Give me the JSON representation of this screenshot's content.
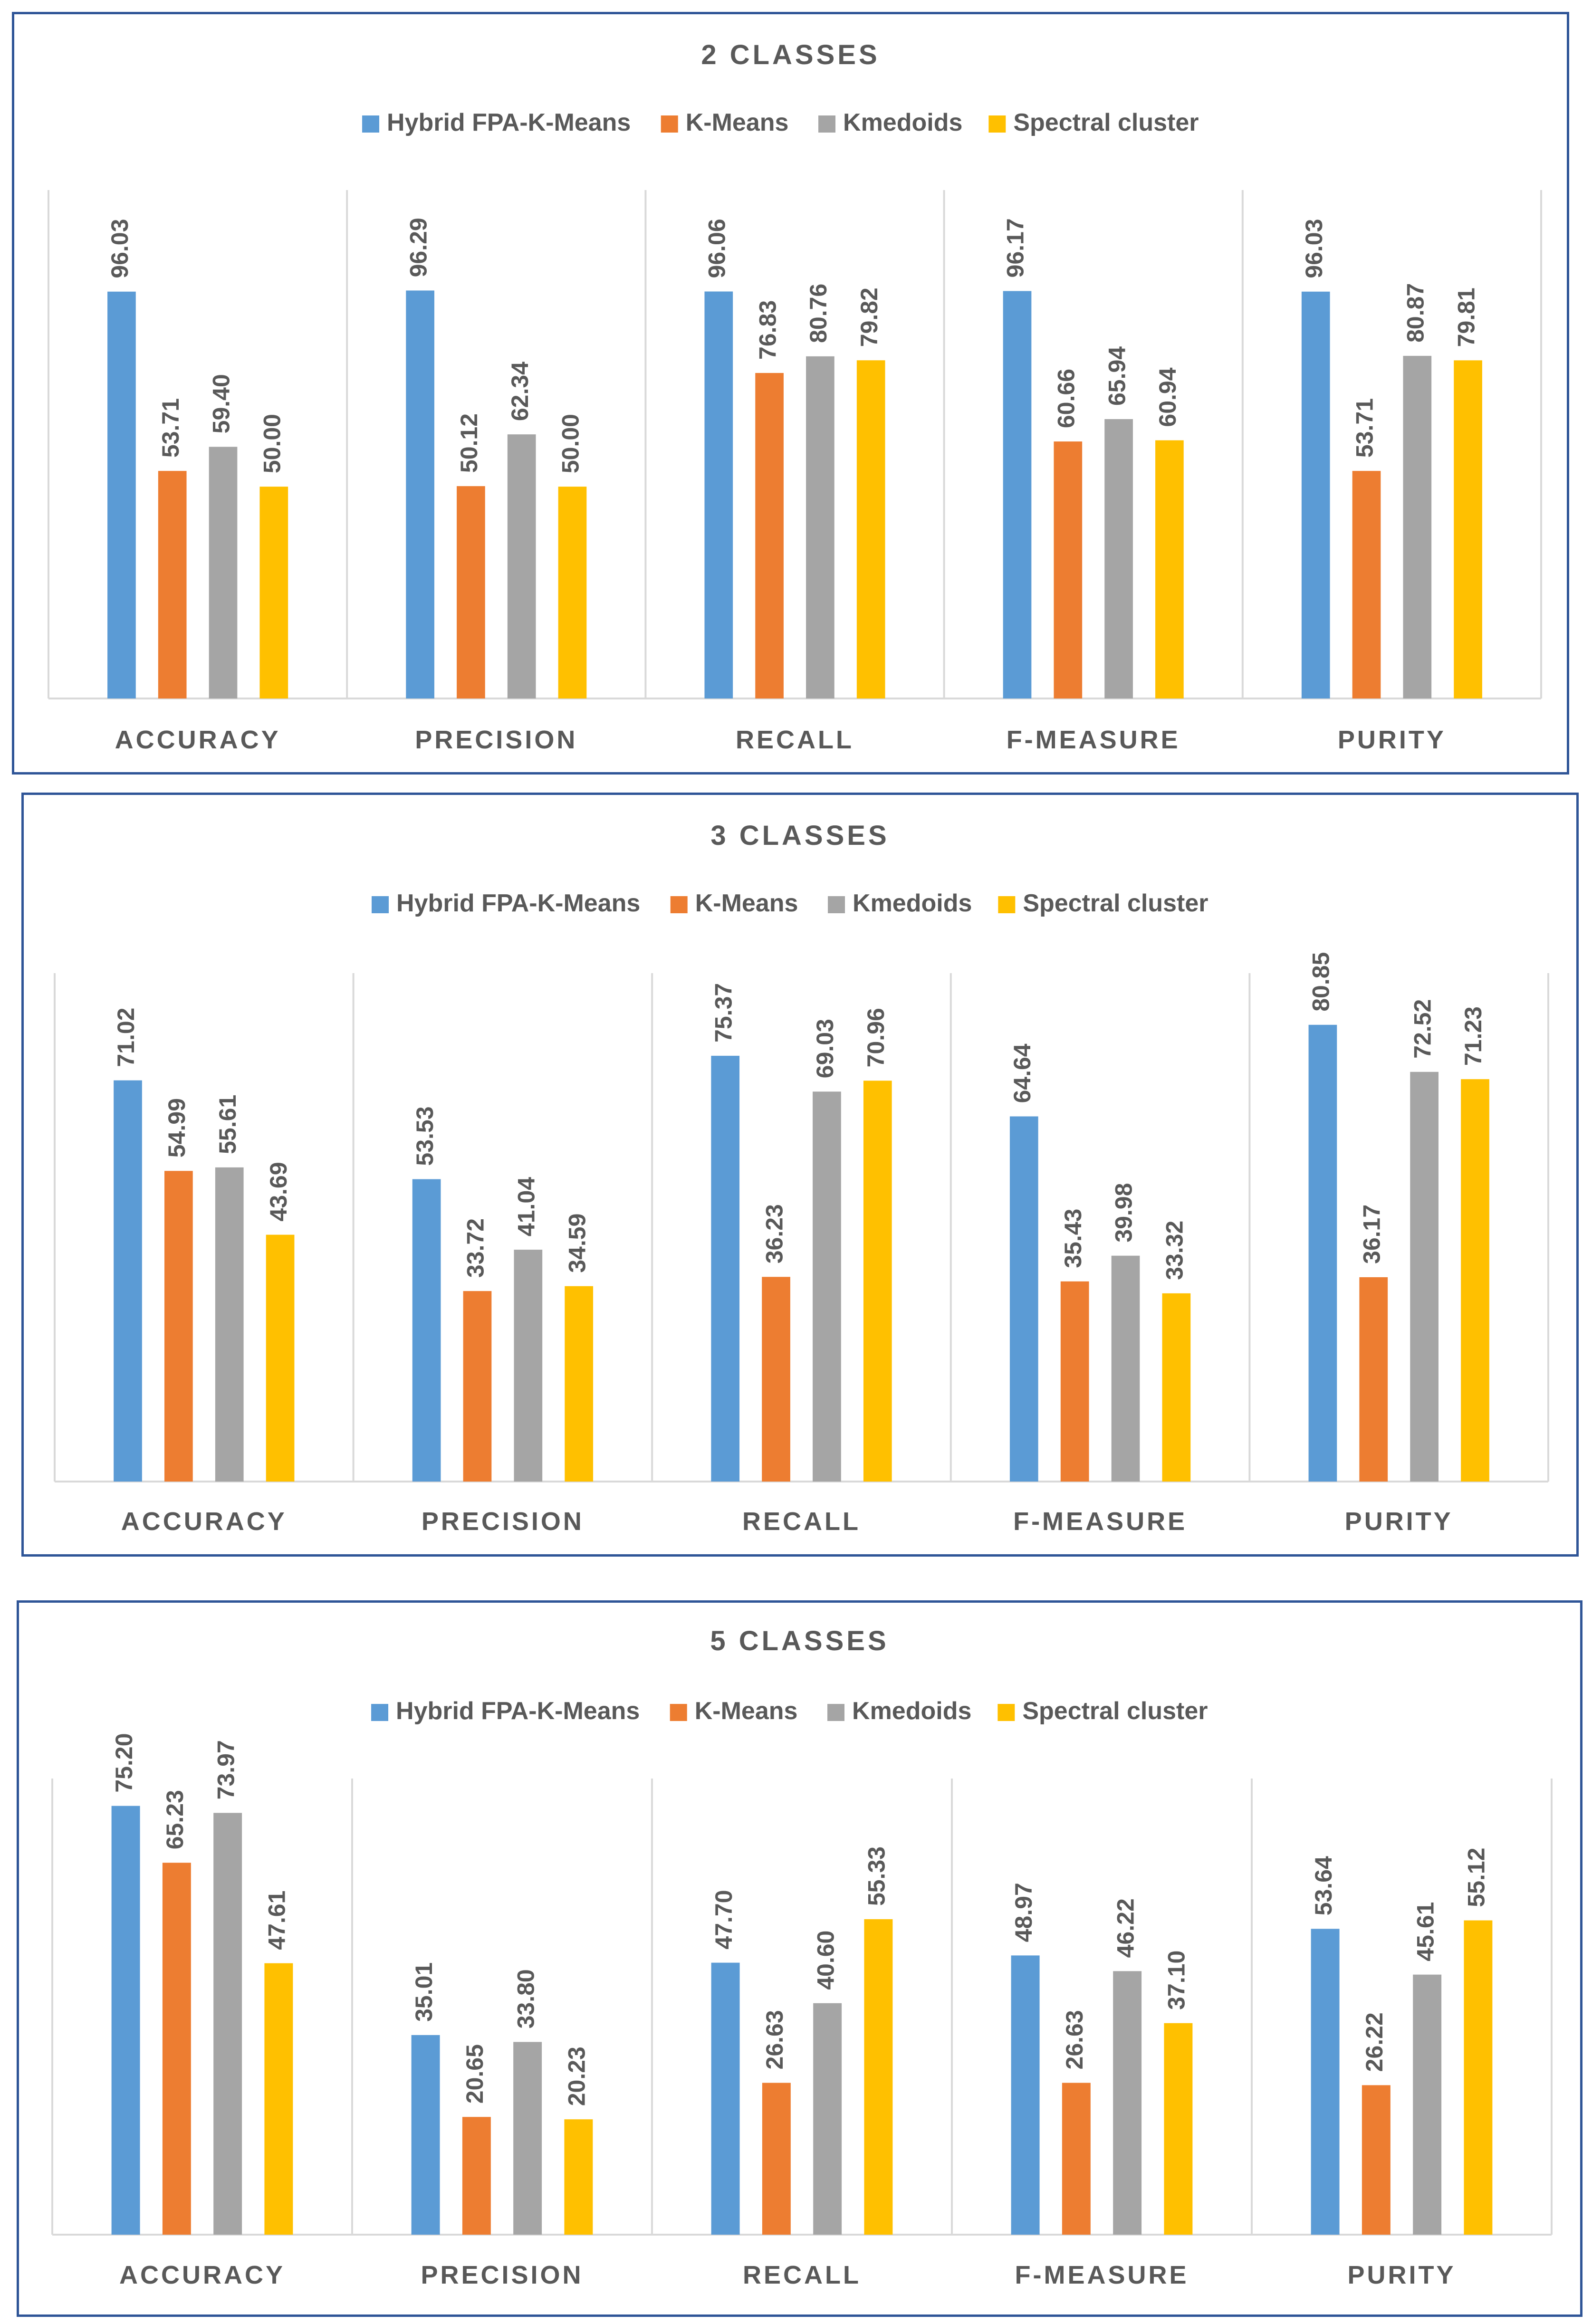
{
  "colors": {
    "series": [
      "#5b9bd5",
      "#ed7d31",
      "#a5a5a5",
      "#ffc000"
    ],
    "text": "#595959",
    "axis": "#d9d9d9",
    "border": "#2f5597"
  },
  "chart_data": [
    {
      "type": "bar",
      "title": "2 CLASSES",
      "categories": [
        "ACCURACY",
        "PRECISION",
        "RECALL",
        "F-MEASURE",
        "PURITY"
      ],
      "series": [
        {
          "name": "Hybrid FPA-K-Means",
          "values": [
            96.03,
            96.29,
            96.06,
            96.17,
            96.03
          ]
        },
        {
          "name": "K-Means",
          "values": [
            53.71,
            50.12,
            76.83,
            60.66,
            53.71
          ]
        },
        {
          "name": "Kmedoids",
          "values": [
            59.4,
            62.34,
            80.76,
            65.94,
            80.87
          ]
        },
        {
          "name": "Spectral cluster",
          "values": [
            50.0,
            50.0,
            79.82,
            60.94,
            79.81
          ]
        }
      ],
      "xlabel": "",
      "ylabel": "",
      "ylim": [
        0,
        120
      ],
      "legend": "top"
    },
    {
      "type": "bar",
      "title": "3 CLASSES",
      "categories": [
        "ACCURACY",
        "PRECISION",
        "RECALL",
        "F-MEASURE",
        "PURITY"
      ],
      "series": [
        {
          "name": "Hybrid FPA-K-Means",
          "values": [
            71.02,
            53.53,
            75.37,
            64.64,
            80.85
          ]
        },
        {
          "name": "K-Means",
          "values": [
            54.99,
            33.72,
            36.23,
            35.43,
            36.17
          ]
        },
        {
          "name": "Kmedoids",
          "values": [
            55.61,
            41.04,
            69.03,
            39.98,
            72.52
          ]
        },
        {
          "name": "Spectral cluster",
          "values": [
            43.69,
            34.59,
            70.96,
            33.32,
            71.23
          ]
        }
      ],
      "xlabel": "",
      "ylabel": "",
      "ylim": [
        0,
        90
      ],
      "legend": "top"
    },
    {
      "type": "bar",
      "title": "5 CLASSES",
      "categories": [
        "ACCURACY",
        "PRECISION",
        "RECALL",
        "F-MEASURE",
        "PURITY"
      ],
      "series": [
        {
          "name": "Hybrid FPA-K-Means",
          "values": [
            75.2,
            35.01,
            47.7,
            48.97,
            53.64
          ]
        },
        {
          "name": "K-Means",
          "values": [
            65.23,
            20.65,
            26.63,
            26.63,
            26.22
          ]
        },
        {
          "name": "Kmedoids",
          "values": [
            73.97,
            33.8,
            40.6,
            46.22,
            45.61
          ]
        },
        {
          "name": "Spectral cluster",
          "values": [
            47.61,
            20.23,
            55.33,
            37.1,
            55.12
          ]
        }
      ],
      "xlabel": "",
      "ylabel": "",
      "ylim": [
        0,
        80
      ],
      "legend": "top"
    }
  ]
}
